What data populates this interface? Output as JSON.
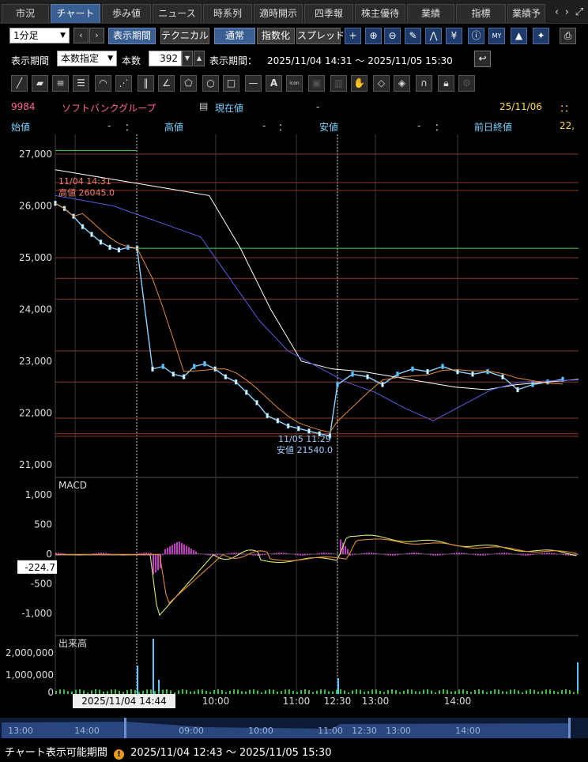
{
  "tabs": [
    {
      "label": "市況"
    },
    {
      "label": "チャート",
      "active": true
    },
    {
      "label": "歩み値"
    },
    {
      "label": "ニュース"
    },
    {
      "label": "時系列"
    },
    {
      "label": "適時開示"
    },
    {
      "label": "四季報"
    },
    {
      "label": "株主優待"
    },
    {
      "label": "業績"
    },
    {
      "label": "指標"
    },
    {
      "label": "業績予"
    }
  ],
  "toolbar": {
    "interval_value": "1分足",
    "period_button": "表示期間",
    "technical_button": "テクニカル",
    "mode_normal": "通常",
    "mode_index": "指数化",
    "mode_spread": "スプレッド",
    "yen_icon_text": "¥",
    "my_icon_text": "MY"
  },
  "period_bar": {
    "period_label": "表示期間",
    "period_select": "本数指定",
    "count_label": "本数",
    "count_value": "392",
    "range_label": "表示期間：",
    "range_value": "2025/11/04 14:31 ～ 2025/11/05 15:30"
  },
  "draw_tools": {
    "text_tool_label": "A",
    "icon_tool_label": "icon"
  },
  "stock": {
    "code": "9984",
    "name": "ソフトバンクグループ",
    "current_label": "現在値",
    "current_value": "-",
    "date": "25/11/06",
    "time": "：：",
    "open_label": "始値",
    "open_value": "-",
    "open_time": "：",
    "high_label": "高値",
    "high_value": "-",
    "high_time": "：",
    "low_label": "安値",
    "low_value": "-",
    "low_time": "：",
    "prev_close_label": "前日終値",
    "prev_close_value": "22,"
  },
  "chart_data": [
    {
      "type": "line",
      "panel": "price",
      "ylim": [
        21000,
        27000
      ],
      "yticks": [
        "27,000",
        "26,000",
        "25,000",
        "24,000",
        "23,000",
        "22,000",
        "21,000"
      ],
      "annotations": [
        {
          "text": "11/04 14:31",
          "color": "#f08070"
        },
        {
          "text": "高値 26045.0",
          "color": "#f08070"
        },
        {
          "text": "11/05 11:29",
          "color": "#9ecbff"
        },
        {
          "text": "安値 21540.0",
          "color": "#9ecbff"
        }
      ],
      "horizontal_lines": [
        27000,
        26450,
        26300,
        25000,
        24600,
        24200,
        23200,
        22600,
        21900,
        21600,
        21550
      ],
      "green_levels": [
        27070,
        25180
      ],
      "series": [
        {
          "values": [
            26050,
            25950,
            25800,
            25600,
            25450,
            25300,
            25200,
            25150,
            25200,
            25180,
            22850,
            22900,
            22750,
            22700,
            22900,
            22950,
            22850,
            22700,
            22600,
            22400,
            22200,
            21950,
            21850,
            21750,
            21700,
            21650,
            21600,
            21560,
            22550,
            22750,
            22700,
            22550,
            22750,
            22850,
            22800,
            22900,
            22800,
            22750,
            22800,
            22700,
            22450,
            22550,
            22600,
            22650
          ]
        },
        {
          "values": [
            26700,
            26600,
            26500,
            26400,
            26300,
            26200,
            25200,
            24000,
            23000,
            22850,
            22800,
            22700,
            22600,
            22500,
            22450,
            22550,
            22600,
            22650
          ]
        },
        {
          "values": [
            26200,
            26100,
            26000,
            25800,
            25600,
            25400,
            24600,
            23800,
            23200,
            22900,
            22600,
            22400,
            22100,
            21850,
            22150,
            22450,
            22600,
            22620,
            22640
          ]
        }
      ]
    },
    {
      "type": "bar",
      "panel": "macd",
      "title": "MACD",
      "ylim": [
        -1500,
        1500
      ],
      "yticks": [
        "1,000",
        "500",
        "0",
        "-500",
        "-1,000"
      ],
      "current_value": "-224.7"
    },
    {
      "type": "bar",
      "panel": "volume",
      "title": "出来高",
      "yticks": [
        "2,000,000",
        "1,000,000",
        "0"
      ]
    }
  ],
  "xaxis": {
    "cursor_label": "2025/11/04 14:44",
    "ticks": [
      "10:00",
      "11:00",
      "12:30",
      "13:00",
      "14:00"
    ]
  },
  "navigator": {
    "ticks": [
      "13:00",
      "14:00",
      "09:00",
      "10:00",
      "11:00",
      "12:30",
      "13:00",
      "14:00"
    ]
  },
  "status": {
    "label": "チャート表示可能期間",
    "range": "2025/11/04 12:43 ～ 2025/11/05 15:30"
  },
  "colors": {
    "accent_blue": "#3a5f93",
    "price_label_red": "#f08070",
    "low_label_blue": "#9ecbff",
    "stock_name": "#ff6699",
    "info_label": "#7ad3ff",
    "date_yellow": "#ffdd44",
    "macd_hist": "#c03cc0",
    "grid": "#3a3a3a",
    "level_line": "#8b3a2a"
  }
}
